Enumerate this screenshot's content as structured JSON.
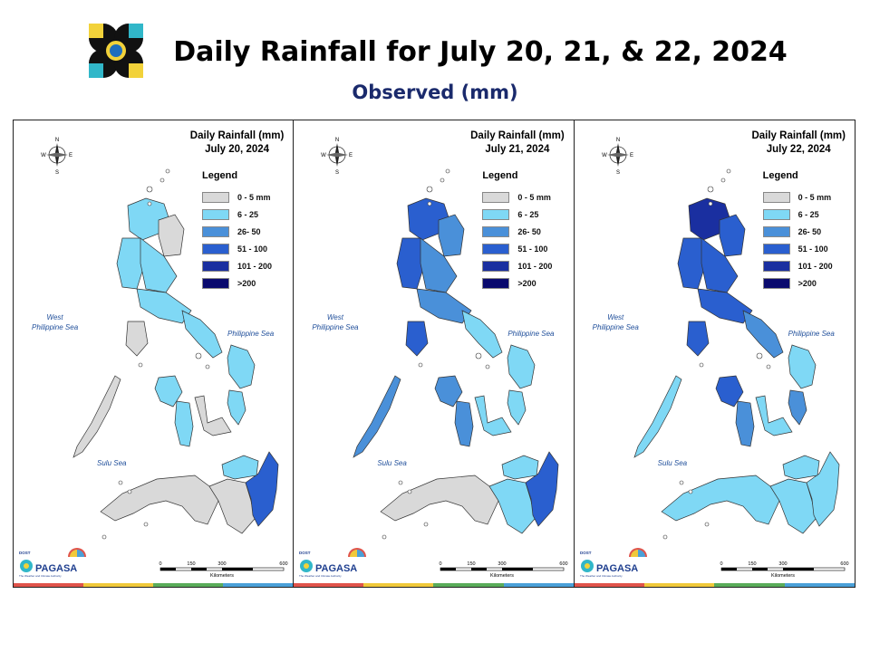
{
  "header": {
    "title": "Daily Rainfall for July 20, 21, & 22, 2024",
    "subtitle": "Observed (mm)"
  },
  "panels": [
    {
      "title_line1": "Daily Rainfall (mm)",
      "title_line2": "July 20, 2024",
      "regions": {
        "north_luzon": 1,
        "ne_luzon": 0,
        "west_luzon": 1,
        "central_luzon": 1,
        "south_luzon": 1,
        "bicol": 1,
        "mindoro": 0,
        "palawan": 0,
        "panay": 1,
        "negros": 1,
        "samar": 1,
        "leyte": 1,
        "cebu_bohol": 0,
        "mindanao_west": 0,
        "mindanao_central": 0,
        "mindanao_east": 3,
        "mindanao_north": 1
      }
    },
    {
      "title_line1": "Daily Rainfall (mm)",
      "title_line2": "July 21, 2024",
      "regions": {
        "north_luzon": 3,
        "ne_luzon": 2,
        "west_luzon": 3,
        "central_luzon": 2,
        "south_luzon": 2,
        "bicol": 1,
        "mindoro": 3,
        "palawan": 2,
        "panay": 2,
        "negros": 2,
        "samar": 1,
        "leyte": 1,
        "cebu_bohol": 1,
        "mindanao_west": 0,
        "mindanao_central": 1,
        "mindanao_east": 3,
        "mindanao_north": 1
      }
    },
    {
      "title_line1": "Daily Rainfall (mm)",
      "title_line2": "July 22, 2024",
      "regions": {
        "north_luzon": 4,
        "ne_luzon": 3,
        "west_luzon": 3,
        "central_luzon": 3,
        "south_luzon": 3,
        "bicol": 2,
        "mindoro": 3,
        "palawan": 1,
        "panay": 3,
        "negros": 2,
        "samar": 1,
        "leyte": 2,
        "cebu_bohol": 1,
        "mindanao_west": 1,
        "mindanao_central": 1,
        "mindanao_east": 1,
        "mindanao_north": 1
      }
    }
  ],
  "legend": {
    "title": "Legend",
    "items": [
      {
        "label": "0 - 5 mm",
        "color": "#d9d9d9"
      },
      {
        "label": "6 - 25",
        "color": "#7fd8f5"
      },
      {
        "label": "26- 50",
        "color": "#4a90d9"
      },
      {
        "label": "51 - 100",
        "color": "#2a5fcf"
      },
      {
        "label": "101 - 200",
        "color": "#1a2fa0"
      },
      {
        "label": ">200",
        "color": "#0a0a6e"
      }
    ]
  },
  "seas": {
    "west_line1": "West",
    "west_line2": "Philippine Sea",
    "east": "Philippine Sea",
    "south": "Sulu Sea"
  },
  "compass": {
    "n": "N",
    "s": "S",
    "e": "E",
    "w": "W"
  },
  "scale": {
    "ticks": [
      "0",
      "150",
      "300",
      "600"
    ],
    "unit": "Kilometers"
  },
  "branding": {
    "dost": "DOST",
    "name": "PAGASA",
    "tagline": "The Weather and Climate Authority"
  },
  "colors": {
    "strip": [
      "#e0534a",
      "#f0c93a",
      "#5aac5a",
      "#4aa0d8"
    ]
  }
}
